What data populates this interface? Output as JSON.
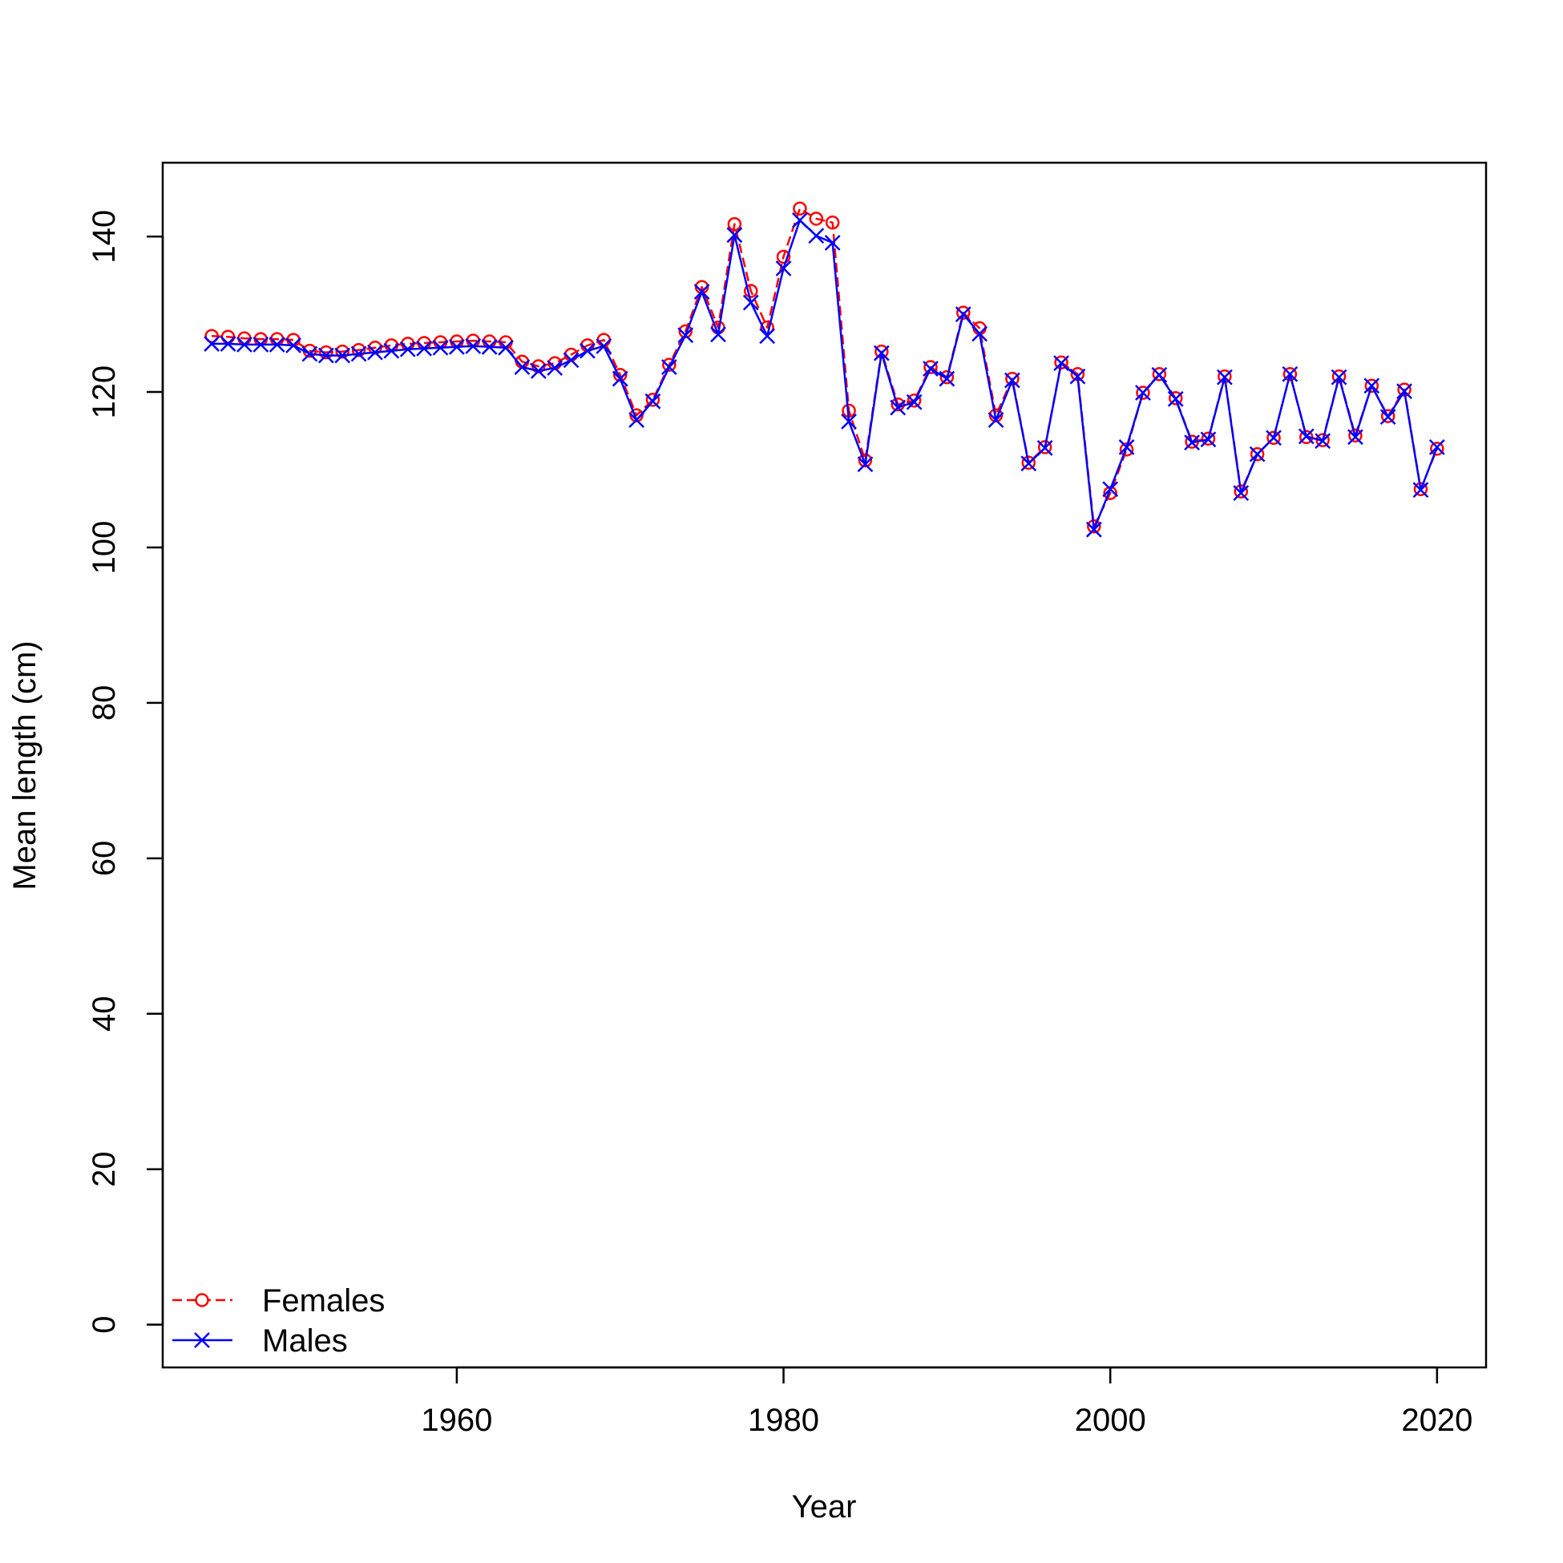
{
  "chart_data": {
    "type": "line",
    "title": "",
    "xlabel": "Year",
    "ylabel": "Mean length (cm)",
    "xlim": [
      1942,
      2023
    ],
    "ylim": [
      -5.5,
      149.5
    ],
    "xticks": [
      1960,
      1980,
      2000,
      2020
    ],
    "yticks": [
      0,
      20,
      40,
      60,
      80,
      100,
      120,
      140
    ],
    "xtick_labels": [
      "1960",
      "1980",
      "2000",
      "2020"
    ],
    "ytick_labels": [
      "0",
      "20",
      "40",
      "60",
      "80",
      "100",
      "120",
      "140"
    ],
    "grid": false,
    "legend_position": "bottom-left",
    "x": [
      1945,
      1946,
      1947,
      1948,
      1949,
      1950,
      1951,
      1952,
      1953,
      1954,
      1955,
      1956,
      1957,
      1958,
      1959,
      1960,
      1961,
      1962,
      1963,
      1964,
      1965,
      1966,
      1967,
      1968,
      1969,
      1970,
      1971,
      1972,
      1973,
      1974,
      1975,
      1976,
      1977,
      1978,
      1979,
      1980,
      1981,
      1982,
      1983,
      1984,
      1985,
      1986,
      1987,
      1988,
      1989,
      1990,
      1991,
      1992,
      1993,
      1994,
      1995,
      1996,
      1997,
      1998,
      1999,
      2000,
      2001,
      2002,
      2003,
      2004,
      2005,
      2006,
      2007,
      2008,
      2009,
      2010,
      2011,
      2012,
      2013,
      2014,
      2015,
      2016,
      2017,
      2018,
      2019,
      2020
    ],
    "series": [
      {
        "name": "Females",
        "color": "#ff0000",
        "line_style": "dashed",
        "marker": "circle",
        "values": [
          127.2,
          127.1,
          126.9,
          126.8,
          126.8,
          126.7,
          125.3,
          125.1,
          125.2,
          125.4,
          125.7,
          126.0,
          126.2,
          126.3,
          126.4,
          126.5,
          126.6,
          126.5,
          126.4,
          123.9,
          123.3,
          123.7,
          124.8,
          126.0,
          126.7,
          122.2,
          117.0,
          119.0,
          123.5,
          127.8,
          133.5,
          128.3,
          141.6,
          133.0,
          128.3,
          137.4,
          143.6,
          142.3,
          141.8,
          117.6,
          111.2,
          125.2,
          118.4,
          118.9,
          123.2,
          121.9,
          130.2,
          128.2,
          117.0,
          121.7,
          110.9,
          112.9,
          123.8,
          122.3,
          102.7,
          107.0,
          112.6,
          119.9,
          122.3,
          119.2,
          113.6,
          114.0,
          122.0,
          107.2,
          112.0,
          114.1,
          122.3,
          114.2,
          113.8,
          122.0,
          114.4,
          120.8,
          116.9,
          120.3,
          107.5,
          112.7
        ]
      },
      {
        "name": "Males",
        "color": "#0000ff",
        "line_style": "solid",
        "marker": "x",
        "values": [
          126.2,
          126.2,
          126.1,
          126.1,
          126.1,
          126.0,
          124.9,
          124.7,
          124.7,
          124.9,
          125.1,
          125.3,
          125.5,
          125.6,
          125.7,
          125.8,
          125.9,
          125.8,
          125.7,
          123.2,
          122.7,
          123.1,
          124.1,
          125.3,
          125.9,
          121.7,
          116.4,
          118.8,
          123.2,
          127.3,
          132.9,
          127.4,
          140.2,
          131.5,
          127.2,
          135.9,
          142.1,
          140.1,
          139.2,
          116.2,
          110.7,
          125.0,
          118.0,
          118.7,
          123.0,
          121.7,
          130.0,
          127.5,
          116.4,
          121.5,
          110.8,
          112.8,
          123.7,
          122.0,
          102.3,
          107.5,
          112.9,
          119.9,
          122.2,
          119.1,
          113.5,
          113.9,
          121.9,
          107.0,
          112.0,
          114.1,
          122.3,
          114.3,
          113.7,
          121.9,
          114.2,
          120.8,
          116.8,
          120.1,
          107.4,
          112.9
        ]
      }
    ]
  }
}
